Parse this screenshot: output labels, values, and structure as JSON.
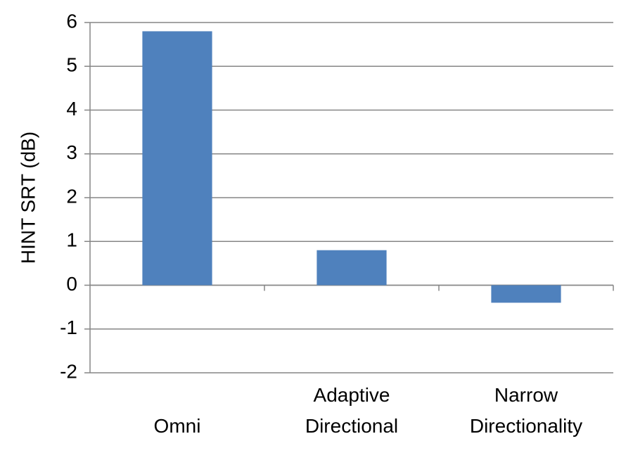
{
  "chart_data": {
    "type": "bar",
    "y_label": "HINT SRT (dB)",
    "categories": [
      "Omni",
      "Adaptive Directional",
      "Narrow Directionality"
    ],
    "values": [
      5.8,
      0.8,
      -0.4
    ],
    "color": "#4f81bd",
    "ylim": [
      -2,
      6
    ],
    "yticks": [
      -2,
      -1,
      0,
      1,
      2,
      3,
      4,
      5,
      6
    ],
    "grid": true
  }
}
